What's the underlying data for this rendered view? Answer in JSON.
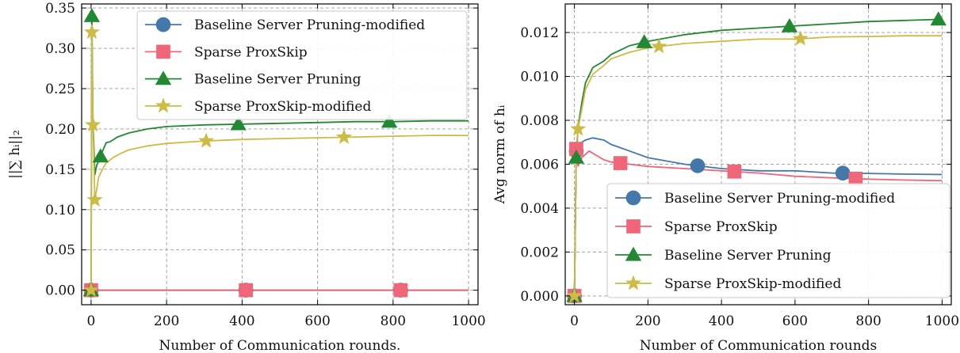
{
  "chart_data": [
    {
      "type": "line",
      "xlabel": "Number of Communication rounds.",
      "ylabel": "||∑ hᵢ||₂",
      "xlim": [
        -25,
        1025
      ],
      "ylim": [
        -0.018,
        0.355
      ],
      "xticks": [
        0,
        200,
        400,
        600,
        800,
        1000
      ],
      "xtick_labels": [
        "0",
        "200",
        "400",
        "600",
        "800",
        "1000"
      ],
      "yticks": [
        0,
        0.05,
        0.1,
        0.15,
        0.2,
        0.25,
        0.3,
        0.35
      ],
      "ytick_labels": [
        "0.00",
        "0.05",
        "0.10",
        "0.15",
        "0.20",
        "0.25",
        "0.30",
        "0.35"
      ],
      "grid": true,
      "legend_position": "top-right",
      "series": [
        {
          "name": "Baseline Server Pruning-modified",
          "color": "#4477AA",
          "marker": "circle",
          "x": [
            0,
            1000
          ],
          "y": [
            0,
            0
          ],
          "markers_x": [
            0,
            410,
            820
          ]
        },
        {
          "name": "Sparse ProxSkip",
          "color": "#EE6677",
          "marker": "square",
          "x": [
            0,
            1000
          ],
          "y": [
            0,
            0
          ],
          "markers_x": [
            0,
            410,
            820
          ]
        },
        {
          "name": "Baseline Server Pruning",
          "color": "#228833",
          "marker": "triangle",
          "x": [
            0,
            2,
            5,
            10,
            15,
            20,
            30,
            40,
            50,
            70,
            100,
            150,
            200,
            300,
            400,
            500,
            600,
            700,
            800,
            900,
            1000
          ],
          "y": [
            0,
            0.34,
            0.21,
            0.143,
            0.155,
            0.16,
            0.172,
            0.183,
            0.184,
            0.19,
            0.195,
            0.2,
            0.203,
            0.205,
            0.206,
            0.207,
            0.208,
            0.209,
            0.209,
            0.21,
            0.21
          ],
          "markers_x": [
            0,
            2,
            25,
            390,
            790
          ]
        },
        {
          "name": "Sparse ProxSkip-modified",
          "color": "#CCBB44",
          "marker": "star",
          "x": [
            0,
            2,
            5,
            10,
            15,
            20,
            30,
            40,
            60,
            80,
            100,
            150,
            200,
            300,
            400,
            500,
            600,
            700,
            800,
            900,
            1000
          ],
          "y": [
            0,
            0.32,
            0.205,
            0.112,
            0.125,
            0.14,
            0.15,
            0.158,
            0.165,
            0.17,
            0.174,
            0.179,
            0.182,
            0.185,
            0.187,
            0.188,
            0.189,
            0.19,
            0.191,
            0.192,
            0.192
          ],
          "markers_x": [
            0,
            2,
            5,
            10,
            305,
            670
          ]
        }
      ]
    },
    {
      "type": "line",
      "xlabel": "Number of Communication rounds",
      "ylabel": "Avg norm of hᵢ",
      "xlim": [
        -25,
        1025
      ],
      "ylim": [
        -0.0004,
        0.0133
      ],
      "xticks": [
        0,
        200,
        400,
        600,
        800,
        1000
      ],
      "xtick_labels": [
        "0",
        "200",
        "400",
        "600",
        "800",
        "1000"
      ],
      "yticks": [
        0,
        0.002,
        0.004,
        0.006,
        0.008,
        0.01,
        0.012
      ],
      "ytick_labels": [
        "0.000",
        "0.002",
        "0.004",
        "0.006",
        "0.008",
        "0.010",
        "0.012"
      ],
      "grid": true,
      "legend_position": "bottom-right",
      "series": [
        {
          "name": "Baseline Server Pruning-modified",
          "color": "#4477AA",
          "marker": "circle",
          "x": [
            0,
            5,
            10,
            20,
            30,
            50,
            80,
            100,
            150,
            200,
            300,
            400,
            500,
            600,
            700,
            800,
            900,
            1000
          ],
          "y": [
            0,
            0.0066,
            0.0068,
            0.007,
            0.0071,
            0.0072,
            0.0071,
            0.0069,
            0.0066,
            0.0063,
            0.006,
            0.0058,
            0.0057,
            0.0057,
            0.0056,
            0.00558,
            0.00555,
            0.00553
          ],
          "markers_x": [
            0,
            5,
            335,
            730
          ]
        },
        {
          "name": "Sparse ProxSkip",
          "color": "#EE6677",
          "marker": "square",
          "x": [
            0,
            5,
            10,
            20,
            40,
            60,
            80,
            100,
            150,
            200,
            300,
            400,
            500,
            600,
            700,
            800,
            900,
            1000
          ],
          "y": [
            0,
            0.0067,
            0.0059,
            0.0063,
            0.0066,
            0.0064,
            0.0062,
            0.0061,
            0.006,
            0.0059,
            0.0058,
            0.0057,
            0.0056,
            0.00545,
            0.00538,
            0.00532,
            0.00528,
            0.00525
          ],
          "markers_x": [
            0,
            5,
            125,
            435,
            765
          ]
        },
        {
          "name": "Baseline Server Pruning",
          "color": "#228833",
          "marker": "triangle",
          "x": [
            0,
            5,
            10,
            20,
            30,
            50,
            80,
            100,
            150,
            200,
            300,
            400,
            500,
            600,
            700,
            800,
            900,
            1000
          ],
          "y": [
            0,
            0.0063,
            0.0077,
            0.0088,
            0.0097,
            0.0104,
            0.0107,
            0.011,
            0.0114,
            0.0116,
            0.0119,
            0.0121,
            0.0122,
            0.0123,
            0.0124,
            0.0125,
            0.01255,
            0.0126
          ],
          "markers_x": [
            0,
            5,
            190,
            585,
            990
          ]
        },
        {
          "name": "Sparse ProxSkip-modified",
          "color": "#CCBB44",
          "marker": "star",
          "x": [
            0,
            5,
            10,
            20,
            30,
            50,
            80,
            100,
            150,
            200,
            300,
            400,
            500,
            600,
            700,
            800,
            900,
            1000
          ],
          "y": [
            0,
            0.0068,
            0.0076,
            0.0085,
            0.0094,
            0.0101,
            0.0105,
            0.0108,
            0.0111,
            0.0113,
            0.0115,
            0.0116,
            0.0117,
            0.0117,
            0.0118,
            0.01182,
            0.01185,
            0.01185
          ],
          "markers_x": [
            0,
            10,
            230,
            615
          ]
        }
      ]
    }
  ]
}
